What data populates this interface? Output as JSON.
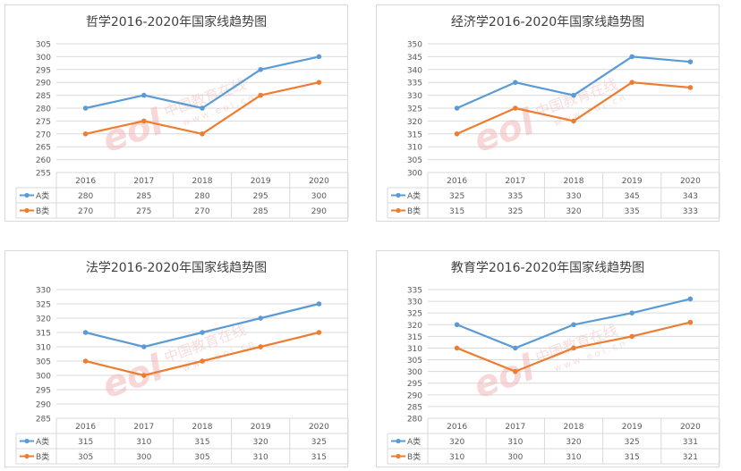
{
  "colors": {
    "series_a": "#5b9bd5",
    "series_b": "#ed7d31",
    "grid": "#d9d9d9",
    "text": "#595959"
  },
  "watermark": {
    "logo": "eol",
    "cn": "中国教育在线",
    "url": "www.eol.cn"
  },
  "chart_data": [
    {
      "type": "line",
      "title": "哲学2016-2020年国家线趋势图",
      "categories": [
        "2016",
        "2017",
        "2018",
        "2019",
        "2020"
      ],
      "ylim": [
        255,
        305
      ],
      "ystep": 5,
      "yticks": [
        "255",
        "260",
        "265",
        "270",
        "275",
        "280",
        "285",
        "290",
        "295",
        "300",
        "305"
      ],
      "grid": true,
      "legend": "data-table",
      "series": [
        {
          "name": "A类",
          "values": [
            280,
            285,
            280,
            295,
            300
          ],
          "labels": [
            "280",
            "285",
            "280",
            "295",
            "300"
          ]
        },
        {
          "name": "B类",
          "values": [
            270,
            275,
            270,
            285,
            290
          ],
          "labels": [
            "270",
            "275",
            "270",
            "285",
            "290"
          ]
        }
      ]
    },
    {
      "type": "line",
      "title": "经济学2016-2020年国家线趋势图",
      "categories": [
        "2016",
        "2017",
        "2018",
        "2019",
        "2020"
      ],
      "ylim": [
        300,
        350
      ],
      "ystep": 5,
      "yticks": [
        "300",
        "305",
        "310",
        "315",
        "320",
        "325",
        "330",
        "335",
        "340",
        "345",
        "350"
      ],
      "grid": true,
      "legend": "data-table",
      "series": [
        {
          "name": "A类",
          "values": [
            325,
            335,
            330,
            345,
            343
          ],
          "labels": [
            "325",
            "335",
            "330",
            "345",
            "343"
          ]
        },
        {
          "name": "B类",
          "values": [
            315,
            325,
            320,
            335,
            333
          ],
          "labels": [
            "315",
            "325",
            "320",
            "335",
            "333"
          ]
        }
      ]
    },
    {
      "type": "line",
      "title": "法学2016-2020年国家线趋势图",
      "categories": [
        "2016",
        "2017",
        "2018",
        "2019",
        "2020"
      ],
      "ylim": [
        285,
        330
      ],
      "ystep": 5,
      "yticks": [
        "285",
        "290",
        "295",
        "300",
        "305",
        "310",
        "315",
        "320",
        "325",
        "330"
      ],
      "grid": true,
      "legend": "data-table",
      "series": [
        {
          "name": "A类",
          "values": [
            315,
            310,
            315,
            320,
            325
          ],
          "labels": [
            "315",
            "310",
            "315",
            "320",
            "325"
          ]
        },
        {
          "name": "B类",
          "values": [
            305,
            300,
            305,
            310,
            315
          ],
          "labels": [
            "305",
            "300",
            "305",
            "310",
            "315"
          ]
        }
      ]
    },
    {
      "type": "line",
      "title": "教育学2016-2020年国家线趋势图",
      "categories": [
        "2016",
        "2017",
        "2018",
        "2019",
        "2020"
      ],
      "ylim": [
        280,
        335
      ],
      "ystep": 5,
      "yticks": [
        "280",
        "285",
        "290",
        "295",
        "300",
        "305",
        "310",
        "315",
        "320",
        "325",
        "330",
        "335"
      ],
      "grid": true,
      "legend": "data-table",
      "series": [
        {
          "name": "A类",
          "values": [
            320,
            310,
            320,
            325,
            331
          ],
          "labels": [
            "320",
            "310",
            "320",
            "325",
            "331"
          ]
        },
        {
          "name": "B类",
          "values": [
            310,
            300,
            310,
            315,
            321
          ],
          "labels": [
            "310",
            "300",
            "310",
            "315",
            "321"
          ]
        }
      ]
    }
  ]
}
